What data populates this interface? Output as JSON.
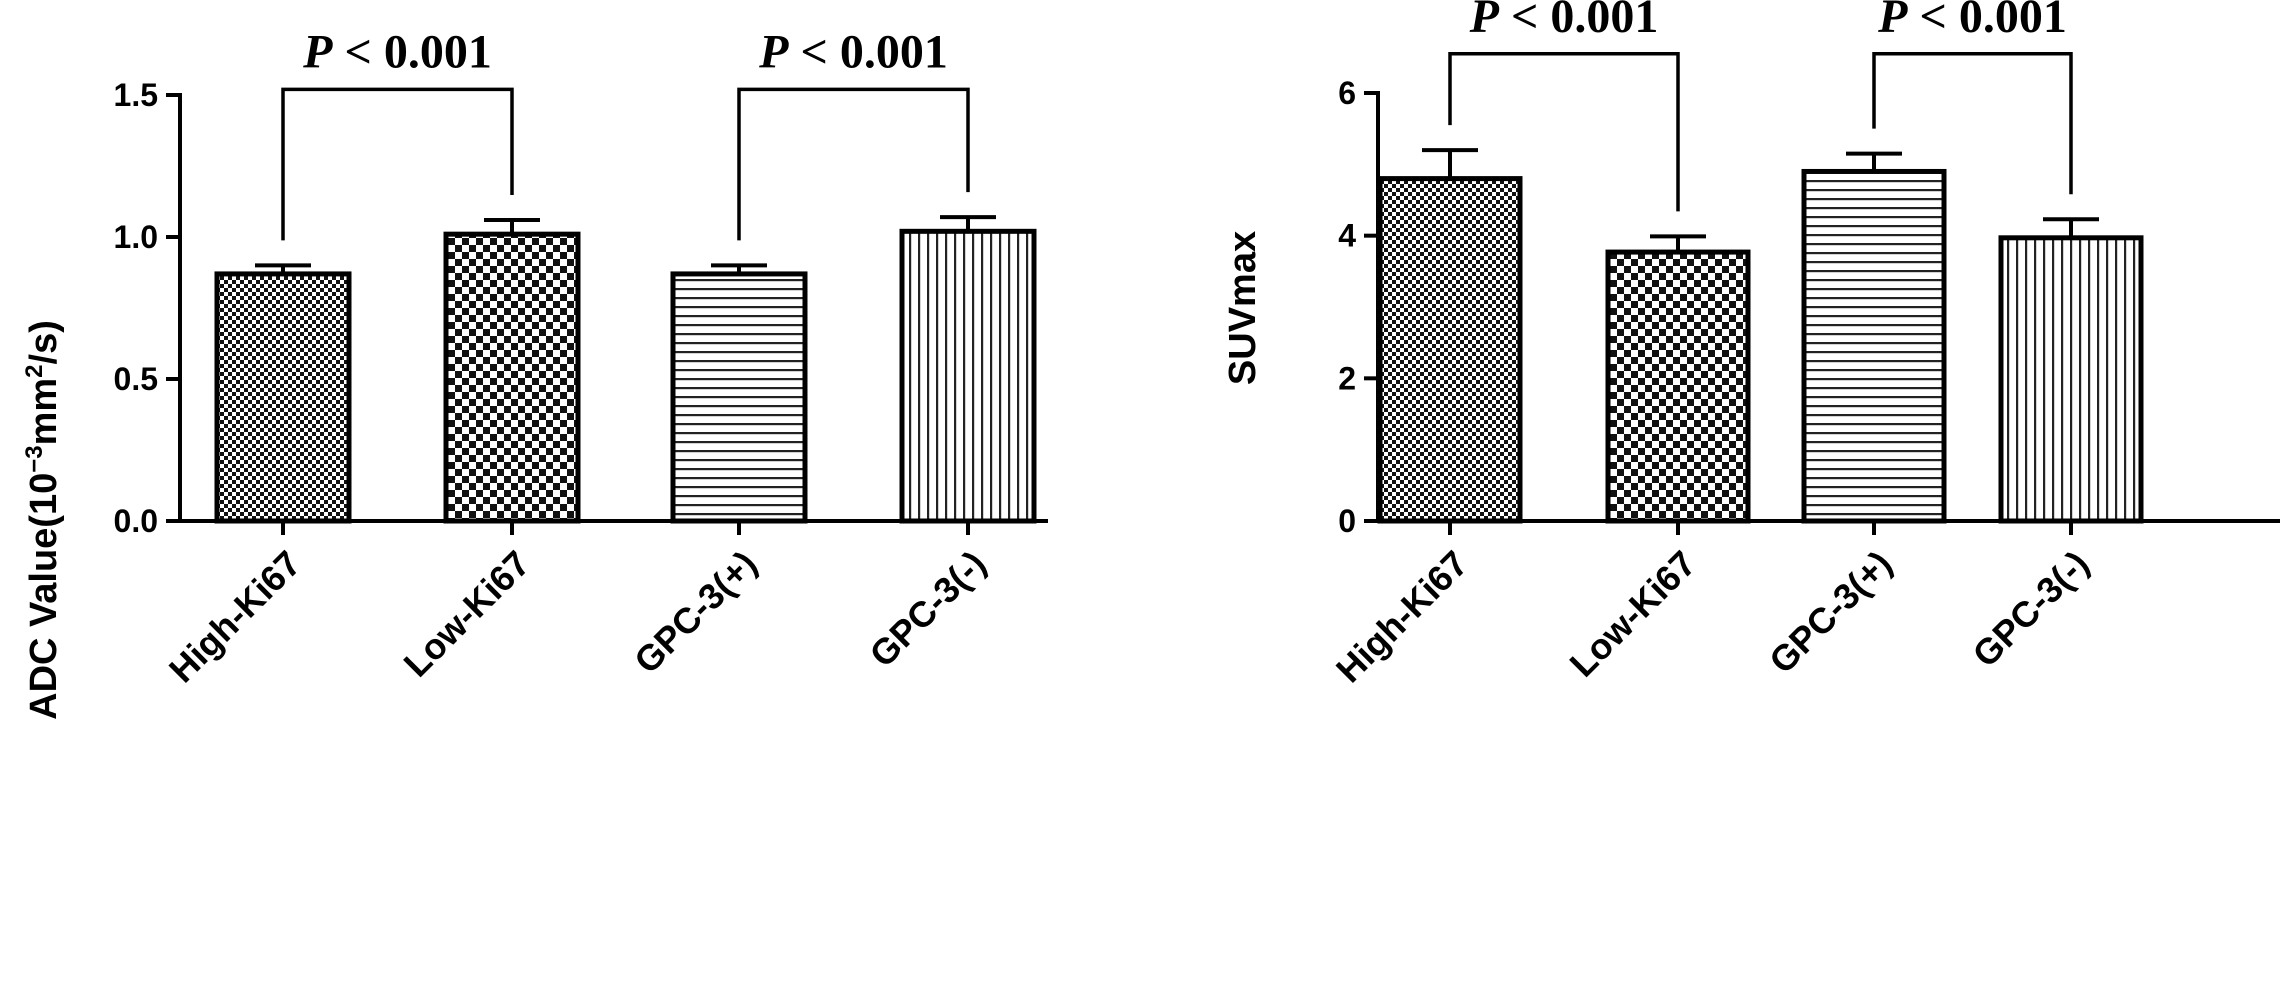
{
  "chart_data": [
    {
      "type": "bar",
      "title": "",
      "categories": [
        "High-Ki67",
        "Low-Ki67",
        "GPC-3(+)",
        "GPC-3(-)"
      ],
      "values": [
        0.87,
        1.01,
        0.87,
        1.02
      ],
      "errors": [
        0.03,
        0.05,
        0.03,
        0.05
      ],
      "patterns": [
        "fine-checker",
        "checker",
        "horizontal-lines",
        "vertical-lines"
      ],
      "xlabel": "",
      "ylabel": {
        "prefix": "ADC Value(10",
        "exp1": "−3",
        "middle": "mm",
        "exp2": "2",
        "suffix": "/s)"
      },
      "ylim": [
        0,
        1.5
      ],
      "yticks": [
        "0.0",
        "0.5",
        "1.0",
        "1.5"
      ],
      "ytick_values": [
        0,
        0.5,
        1.0,
        1.5
      ],
      "grid": false,
      "significance": [
        {
          "from": 0,
          "to": 1,
          "level": 1.52,
          "p_symbol": "P",
          "text": " < 0.001"
        },
        {
          "from": 2,
          "to": 3,
          "level": 1.52,
          "p_symbol": "P",
          "text": " < 0.001"
        }
      ]
    },
    {
      "type": "bar",
      "title": "",
      "categories": [
        "High-Ki67",
        "Low-Ki67",
        "GPC-3(+)",
        "GPC-3(-)"
      ],
      "values": [
        4.8,
        3.77,
        4.9,
        3.97
      ],
      "errors": [
        0.4,
        0.22,
        0.25,
        0.26
      ],
      "patterns": [
        "fine-checker",
        "checker",
        "horizontal-lines",
        "vertical-lines"
      ],
      "xlabel": "",
      "ylabel": {
        "prefix": "SUVmax",
        "exp1": "",
        "middle": "",
        "exp2": "",
        "suffix": ""
      },
      "ylim": [
        0,
        6
      ],
      "yticks": [
        "0",
        "2",
        "4",
        "6"
      ],
      "ytick_values": [
        0,
        2,
        4,
        6
      ],
      "grid": false,
      "significance": [
        {
          "from": 0,
          "to": 1,
          "level": 6.55,
          "p_symbol": "P",
          "text": " < 0.001"
        },
        {
          "from": 2,
          "to": 3,
          "level": 6.55,
          "p_symbol": "P",
          "text": " < 0.001"
        }
      ]
    }
  ]
}
